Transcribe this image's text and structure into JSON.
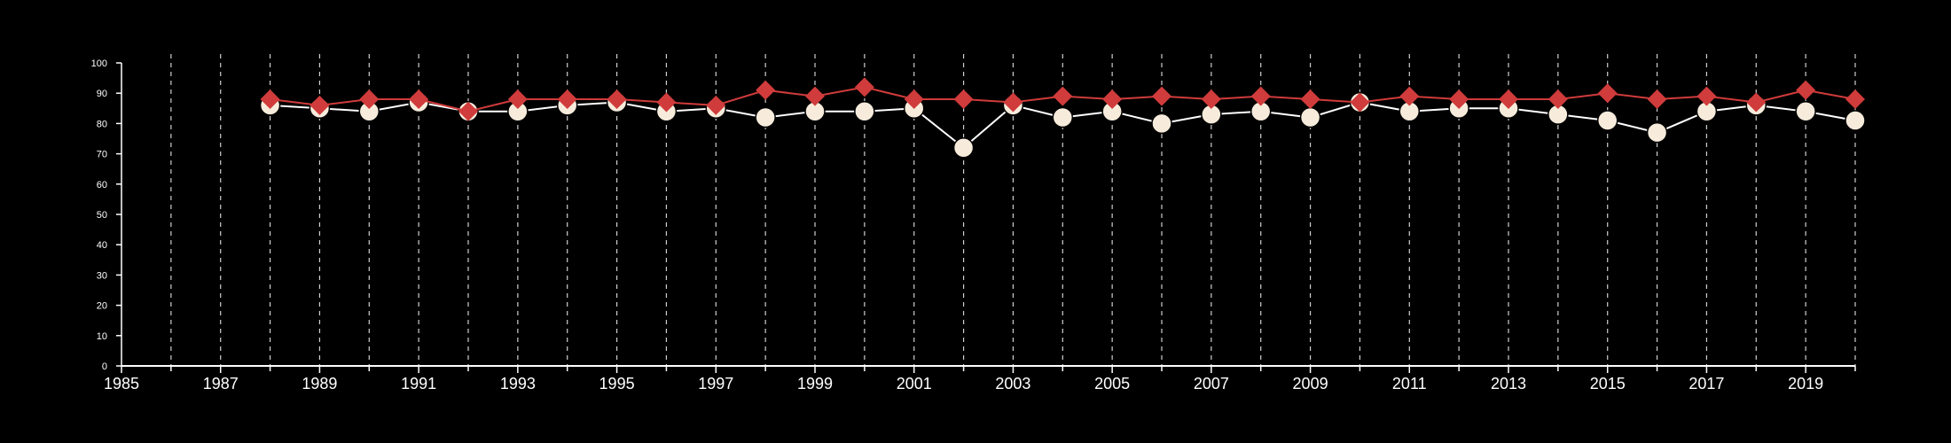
{
  "chart_data": {
    "type": "line",
    "title": "",
    "xlabel": "",
    "ylabel": "",
    "xlim": [
      1985,
      2020
    ],
    "ylim": [
      0,
      100
    ],
    "x_ticks": [
      1985,
      1987,
      1989,
      1991,
      1993,
      1995,
      1997,
      1999,
      2001,
      2003,
      2005,
      2007,
      2009,
      2011,
      2013,
      2015,
      2017,
      2019
    ],
    "y_ticks": [
      0,
      10,
      20,
      30,
      40,
      50,
      60,
      70,
      80,
      90,
      100
    ],
    "vertical_gridlines": "dashed, every year",
    "horizontal_gridlines": false,
    "legend": "none",
    "x": [
      1988,
      1989,
      1990,
      1991,
      1992,
      1993,
      1994,
      1995,
      1996,
      1997,
      1998,
      1999,
      2000,
      2001,
      2002,
      2003,
      2004,
      2005,
      2006,
      2007,
      2008,
      2009,
      2010,
      2011,
      2012,
      2013,
      2014,
      2015,
      2016,
      2017,
      2018,
      2019,
      2020
    ],
    "series": [
      {
        "marker": "diamond",
        "color": "#d03b3b",
        "values": [
          88,
          86,
          88,
          88,
          84,
          88,
          88,
          88,
          87,
          86,
          91,
          89,
          92,
          88,
          88,
          87,
          89,
          88,
          89,
          88,
          89,
          88,
          87,
          89,
          88,
          88,
          88,
          90,
          88,
          89,
          87,
          91,
          88
        ]
      },
      {
        "marker": "circle",
        "color": "#f7ecdc",
        "values": [
          86,
          85,
          84,
          87,
          84,
          84,
          86,
          87,
          84,
          85,
          82,
          84,
          84,
          85,
          72,
          86,
          82,
          84,
          80,
          83,
          84,
          82,
          87,
          84,
          85,
          85,
          83,
          81,
          77,
          84,
          86,
          84,
          81
        ]
      }
    ]
  }
}
